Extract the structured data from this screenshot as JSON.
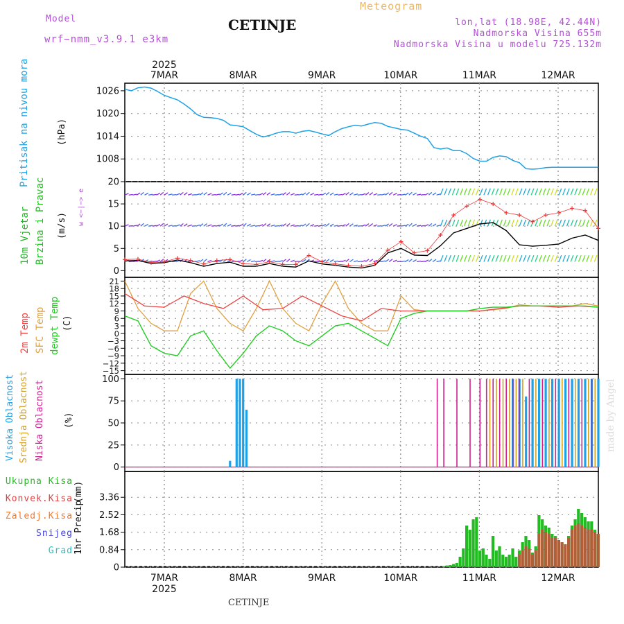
{
  "header": {
    "model_label": "Model",
    "model_value": "wrf−nmm_v3.9.1  e3km",
    "title": "CETINJE",
    "meteogram": "Meteogram",
    "lonlat": "lon,lat (18.98E, 42.44N)",
    "altitude": "Nadmorska Visina 655m",
    "model_altitude": "Nadmorska Visina u modelu 725.132m"
  },
  "footer": {
    "station": "CETINJE",
    "credit": "made by Angel"
  },
  "colors": {
    "pressure": "#1ea1e6",
    "temp": "#ee4444",
    "sfc": "#e0a040",
    "dewpt": "#22cc22",
    "black": "#000000",
    "high_cloud": "#1ea1e6",
    "mid_cloud": "#d4a020",
    "low_cloud": "#d02090",
    "total_precip": "#22bb22",
    "conv_precip": "#e04040",
    "freezing": "#f07a30",
    "snow": "#4444dd",
    "hail": "#22c4c4",
    "grid": "#888888"
  },
  "chart_data": [
    {
      "type": "line",
      "name": "pressure",
      "ylabel_left": "Pritisak na nivou mora",
      "ylabel_unit": "(hPa)",
      "ylim": [
        1002,
        1028
      ],
      "yticks": [
        1008,
        1014,
        1020,
        1026
      ],
      "ytick_labels": [
        "1008",
        "1014",
        "1020",
        "1026"
      ],
      "top_axis_year": "2025",
      "xticks": [
        "7MAR",
        "8MAR",
        "9MAR",
        "10MAR",
        "11MAR",
        "12MAR"
      ],
      "series": [
        {
          "name": "MSL pressure",
          "x": [
            0,
            2,
            4,
            6,
            8,
            10,
            12,
            14,
            16,
            18,
            20,
            22,
            24,
            26,
            28,
            30,
            32,
            34,
            36,
            38,
            40,
            42,
            44,
            46,
            48,
            50,
            52,
            54,
            56,
            58,
            60,
            62,
            64,
            66,
            68,
            70,
            72,
            74,
            76,
            78,
            80,
            82,
            84,
            86,
            88,
            90,
            92,
            94,
            96,
            98,
            100,
            102,
            104,
            106,
            108,
            110,
            112,
            114,
            116,
            118,
            120,
            122,
            124,
            126,
            128,
            130,
            132,
            134,
            136,
            138,
            140,
            142,
            144
          ],
          "values": [
            1026.4,
            1026.0,
            1026.8,
            1027.0,
            1026.7,
            1025.8,
            1024.8,
            1024.2,
            1023.6,
            1022.5,
            1021.2,
            1019.7,
            1019.0,
            1018.9,
            1018.7,
            1018.2,
            1017.0,
            1016.8,
            1016.5,
            1015.5,
            1014.5,
            1013.8,
            1014.2,
            1014.8,
            1015.2,
            1015.2,
            1014.8,
            1015.3,
            1015.5,
            1015.1,
            1014.6,
            1014.2,
            1015.2,
            1016.0,
            1016.5,
            1016.9,
            1016.7,
            1017.2,
            1017.6,
            1017.4,
            1016.6,
            1016.2,
            1015.8,
            1015.6,
            1014.8,
            1014.0,
            1013.4,
            1011.0,
            1010.6,
            1010.9,
            1010.2,
            1010.2,
            1009.4,
            1008.1,
            1007.4,
            1007.4,
            1008.4,
            1008.8,
            1008.6,
            1007.6,
            1007.0,
            1005.4,
            1005.3,
            1005.4,
            1005.7,
            1005.8,
            1005.8,
            1005.8,
            1005.8,
            1005.8,
            1005.8,
            1005.8,
            1005.8
          ]
        }
      ]
    },
    {
      "type": "line",
      "name": "wind",
      "ylabel_left": "10m Vjetar",
      "ylabel_left2": "Brzina i Pravac",
      "ylabel_unit": "(m/s)",
      "compass_label": "w <−|−> e",
      "ylim": [
        -1.5,
        20
      ],
      "yticks": [
        0,
        5,
        10,
        15,
        20
      ],
      "ytick_labels": [
        "0",
        "5",
        "10",
        "15",
        "20"
      ],
      "series": [
        {
          "name": "Wind speed",
          "x": [
            0,
            4,
            8,
            12,
            16,
            20,
            24,
            28,
            32,
            36,
            40,
            44,
            48,
            52,
            56,
            60,
            64,
            68,
            72,
            76,
            80,
            84,
            88,
            92,
            96,
            100,
            104,
            108,
            112,
            116,
            120,
            124,
            128,
            132,
            136,
            140,
            144
          ],
          "values": [
            2.2,
            2.3,
            1.6,
            1.8,
            2.4,
            1.8,
            1.0,
            1.6,
            1.9,
            1.0,
            1.0,
            1.6,
            1.0,
            0.8,
            2.2,
            1.5,
            1.2,
            0.8,
            0.6,
            1.2,
            4.0,
            5.0,
            3.5,
            3.4,
            5.6,
            8.5,
            9.5,
            10.5,
            10.8,
            9.0,
            5.8,
            5.5,
            5.7,
            6.0,
            7.3,
            8.0,
            6.8
          ]
        },
        {
          "name": "Wind gust",
          "x": [
            0,
            4,
            8,
            12,
            16,
            20,
            24,
            28,
            32,
            36,
            40,
            44,
            48,
            52,
            56,
            60,
            64,
            68,
            72,
            76,
            80,
            84,
            88,
            92,
            96,
            100,
            104,
            108,
            112,
            116,
            120,
            124,
            128,
            132,
            136,
            140,
            144
          ],
          "values": [
            2.5,
            2.6,
            1.8,
            2.0,
            2.8,
            2.3,
            1.5,
            2.3,
            2.5,
            1.6,
            1.4,
            2.0,
            1.4,
            1.4,
            3.4,
            2.0,
            1.5,
            1.2,
            1.0,
            1.6,
            4.6,
            6.5,
            4.0,
            4.5,
            8.0,
            12.5,
            14.5,
            16.0,
            15.0,
            13.0,
            12.5,
            11.0,
            12.5,
            13.0,
            14.0,
            13.5,
            9.5
          ]
        }
      ]
    },
    {
      "type": "line",
      "name": "temperature",
      "ylabel_left": "2m Temp",
      "ylabel_left2": "SFC Temp",
      "ylabel_left3": "dewpt Temp",
      "ylabel_unit": "(C)",
      "ylim": [
        -16.5,
        22.5
      ],
      "yticks": [
        -15,
        -12,
        -9,
        -6,
        -3,
        0,
        3,
        6,
        9,
        12,
        15,
        18,
        21
      ],
      "ytick_labels": [
        "−15",
        "−12",
        "−9",
        "−6",
        "−3",
        "0",
        "3",
        "6",
        "9",
        "12",
        "15",
        "18",
        "21"
      ],
      "series": [
        {
          "name": "2m Temp",
          "x": [
            0,
            6,
            12,
            18,
            24,
            30,
            36,
            42,
            48,
            54,
            60,
            66,
            72,
            78,
            84,
            90,
            96,
            102,
            108,
            114,
            120,
            126,
            132,
            138,
            144
          ],
          "values": [
            16,
            11,
            10.5,
            15,
            12,
            10,
            15,
            9.5,
            10,
            15,
            11,
            7,
            5,
            10,
            9,
            9,
            9,
            9,
            9,
            10,
            11,
            11,
            10.5,
            11,
            10.5
          ]
        },
        {
          "name": "SFC Temp",
          "x": [
            0,
            4,
            8,
            12,
            16,
            20,
            24,
            28,
            32,
            36,
            40,
            44,
            48,
            52,
            56,
            60,
            64,
            68,
            72,
            76,
            80,
            84,
            88,
            92,
            96,
            100,
            104,
            108,
            112,
            116,
            120,
            124,
            128,
            132,
            136,
            140,
            144
          ],
          "values": [
            21,
            10,
            4,
            1,
            1,
            16,
            21,
            10,
            4,
            1,
            10,
            21,
            10,
            4,
            1,
            12,
            21,
            10,
            4,
            1,
            1,
            15,
            9.5,
            9,
            9,
            9,
            9,
            9,
            9.5,
            10,
            11.5,
            11,
            11,
            11,
            11,
            12,
            11
          ]
        },
        {
          "name": "dewpt Temp",
          "x": [
            0,
            4,
            8,
            12,
            16,
            20,
            24,
            28,
            32,
            36,
            40,
            44,
            48,
            52,
            56,
            60,
            64,
            68,
            72,
            76,
            80,
            84,
            88,
            92,
            96,
            100,
            104,
            108,
            112,
            116,
            120,
            124,
            128,
            132,
            136,
            140,
            144
          ],
          "values": [
            7,
            5,
            -5,
            -8,
            -9,
            -1,
            1,
            -7,
            -14,
            -8,
            -1,
            3,
            1,
            -3,
            -5,
            -1,
            3,
            4,
            1,
            -2,
            -5,
            6,
            8,
            9,
            9,
            9,
            9,
            10,
            10.5,
            10.5,
            11,
            11,
            11,
            11,
            11,
            11,
            10.5
          ]
        }
      ]
    },
    {
      "type": "bar",
      "name": "cloud",
      "ylabel_left": "Visoka Oblacnost",
      "ylabel_left2": "Srednja Oblacnost",
      "ylabel_left3": "Niska Oblacnost",
      "ylabel_unit": "(%)",
      "ylim": [
        -5,
        105
      ],
      "yticks": [
        0,
        25,
        50,
        75,
        100
      ],
      "ytick_labels": [
        "0",
        "25",
        "50",
        "75",
        "100"
      ],
      "series": [
        {
          "name": "Visoka Oblacnost",
          "x": [
            32,
            34,
            35,
            36,
            37,
            118,
            120,
            122,
            124,
            126,
            128,
            130,
            132,
            134,
            136,
            138,
            140,
            142,
            144
          ],
          "values": [
            7,
            100,
            100,
            100,
            65,
            100,
            100,
            80,
            100,
            100,
            100,
            100,
            100,
            100,
            100,
            100,
            100,
            100,
            100
          ]
        },
        {
          "name": "Srednja Oblacnost",
          "x": [
            111,
            113,
            115,
            117,
            119,
            121,
            125,
            129,
            133,
            137,
            141,
            143
          ],
          "values": [
            100,
            100,
            100,
            100,
            100,
            100,
            100,
            100,
            100,
            100,
            100,
            100
          ]
        },
        {
          "name": "Niska Oblacnost",
          "x": [
            95,
            97,
            101,
            105,
            108,
            110,
            112,
            114,
            116,
            118,
            120,
            123,
            127,
            131,
            135,
            139,
            142
          ],
          "values": [
            100,
            100,
            100,
            100,
            100,
            100,
            100,
            100,
            100,
            100,
            100,
            100,
            100,
            100,
            100,
            100,
            100
          ]
        }
      ]
    },
    {
      "type": "bar",
      "name": "precipitation",
      "ylabel_left": "1hr Precip",
      "ylabel_unit": "(mm)",
      "ylim": [
        0,
        4.6
      ],
      "yticks": [
        0,
        0.84,
        1.68,
        2.52,
        3.36
      ],
      "ytick_labels": [
        "0",
        "0.84",
        "1.68",
        "2.52",
        "3.36"
      ],
      "xticks": [
        "7MAR",
        "8MAR",
        "9MAR",
        "10MAR",
        "11MAR",
        "12MAR"
      ],
      "bottom_axis_year": "2025",
      "legend": [
        "Ukupna Kisa",
        "Konvek.Kisa",
        "Zaledj.Kisa",
        "Snijeg",
        "Grad"
      ],
      "series": [
        {
          "name": "Ukupna Kisa",
          "x": [
            97,
            98,
            99,
            100,
            101,
            102,
            103,
            104,
            105,
            106,
            107,
            108,
            109,
            110,
            111,
            112,
            113,
            114,
            115,
            116,
            117,
            118,
            119,
            120,
            121,
            122,
            123,
            124,
            125,
            126,
            127,
            128,
            129,
            130,
            131,
            132,
            133,
            134,
            135,
            136,
            137,
            138,
            139,
            140,
            141,
            142,
            143,
            144
          ],
          "values": [
            0.05,
            0.08,
            0.1,
            0.15,
            0.2,
            0.5,
            0.9,
            2.0,
            1.8,
            2.3,
            2.4,
            0.8,
            0.9,
            0.6,
            0.4,
            1.5,
            0.8,
            1.0,
            0.6,
            0.5,
            0.6,
            0.9,
            0.5,
            0.8,
            1.2,
            1.5,
            1.3,
            0.7,
            1.0,
            2.5,
            2.3,
            2.0,
            1.9,
            1.6,
            1.5,
            1.3,
            1.2,
            1.1,
            1.5,
            2.0,
            2.3,
            2.8,
            2.6,
            2.4,
            2.2,
            2.2,
            1.8,
            1.6
          ]
        },
        {
          "name": "Konvek.Kisa",
          "x": [
            120,
            121,
            122,
            123,
            124,
            125,
            126,
            127,
            128,
            129,
            130,
            131,
            132,
            133,
            134,
            135,
            136,
            137,
            138,
            139,
            140,
            141,
            142,
            143,
            144
          ],
          "values": [
            0.6,
            0.8,
            1.0,
            0.9,
            0.6,
            0.8,
            1.6,
            1.8,
            1.7,
            1.6,
            1.4,
            1.4,
            1.3,
            1.2,
            1.1,
            1.4,
            1.8,
            2.0,
            2.1,
            2.0,
            1.9,
            1.8,
            1.8,
            1.7,
            1.6
          ]
        }
      ]
    }
  ]
}
